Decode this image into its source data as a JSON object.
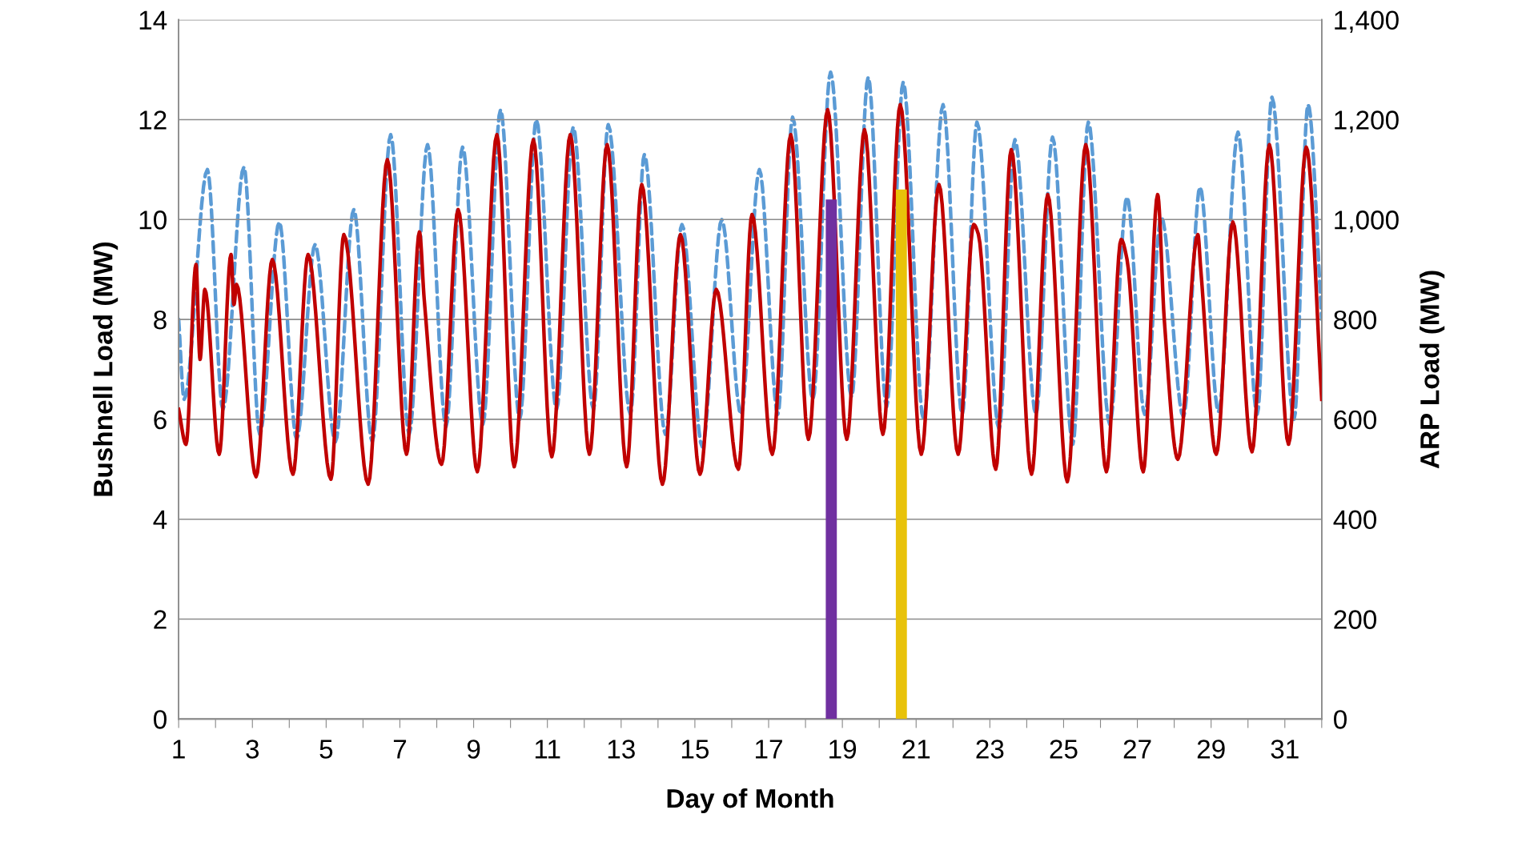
{
  "chart_data": {
    "type": "line",
    "xlabel": "Day of Month",
    "ylabel": "Bushnell Load (MW)",
    "y2label": "ARP Load (MW)",
    "xlim": [
      1,
      32
    ],
    "xticks": [
      1,
      {
        "value": 2,
        "label": null
      },
      3,
      {
        "value": 4,
        "label": null
      },
      5,
      {
        "value": 6,
        "label": null
      },
      7,
      {
        "value": 8,
        "label": null
      },
      9,
      {
        "value": 10,
        "label": null
      },
      11,
      {
        "value": 12,
        "label": null
      },
      13,
      {
        "value": 14,
        "label": null
      },
      15,
      {
        "value": 16,
        "label": null
      },
      17,
      {
        "value": 18,
        "label": null
      },
      19,
      {
        "value": 20,
        "label": null
      },
      21,
      {
        "value": 22,
        "label": null
      },
      23,
      {
        "value": 24,
        "label": null
      },
      25,
      {
        "value": 26,
        "label": null
      },
      27,
      {
        "value": 28,
        "label": null
      },
      29,
      {
        "value": 30,
        "label": null
      },
      31,
      {
        "value": 32,
        "label": null
      }
    ],
    "ylim": [
      0,
      14
    ],
    "yticks": [
      0,
      2,
      4,
      6,
      8,
      10,
      12,
      14
    ],
    "y2lim": [
      0,
      1400
    ],
    "y2ticks": [
      0,
      200,
      400,
      600,
      800,
      {
        "value": 1000,
        "label": "1,000"
      },
      {
        "value": 1200,
        "label": "1,200"
      },
      {
        "value": 1400,
        "label": "1,400"
      }
    ],
    "grid": "y",
    "legend": false,
    "series": [
      {
        "axis": "y2",
        "color": "#5b9bd5",
        "line_style": "dashed",
        "x": [
          1.0,
          1.15,
          1.78,
          2.2,
          2.77,
          3.2,
          3.73,
          4.2,
          4.7,
          5.25,
          5.75,
          6.25,
          6.75,
          7.25,
          7.75,
          8.25,
          8.7,
          9.25,
          9.73,
          10.25,
          10.7,
          11.25,
          11.7,
          12.25,
          12.65,
          13.25,
          13.63,
          14.2,
          14.65,
          15.2,
          15.73,
          16.25,
          16.75,
          17.25,
          17.65,
          18.2,
          18.68,
          19.25,
          19.7,
          20.2,
          20.65,
          21.2,
          21.73,
          22.25,
          22.65,
          23.25,
          23.68,
          24.25,
          24.7,
          25.25,
          25.67,
          26.25,
          26.72,
          27.2,
          27.65,
          28.25,
          28.7,
          29.2,
          29.73,
          30.25,
          30.65,
          31.25,
          31.63,
          32.0
        ],
        "values": [
          800,
          640,
          1100,
          620,
          1105,
          570,
          995,
          560,
          950,
          555,
          1020,
          555,
          1170,
          570,
          1150,
          585,
          1145,
          590,
          1220,
          600,
          1200,
          620,
          1185,
          620,
          1190,
          610,
          1130,
          570,
          990,
          545,
          1000,
          610,
          1100,
          610,
          1205,
          640,
          1295,
          645,
          1285,
          625,
          1275,
          600,
          1230,
          610,
          1195,
          580,
          1160,
          610,
          1165,
          550,
          1195,
          590,
          1045,
          610,
          1005,
          605,
          1065,
          615,
          1175,
          610,
          1245,
          600,
          1230,
          800
        ]
      },
      {
        "color": "#c00000",
        "line_style": "solid",
        "x": [
          1.0,
          1.2,
          1.47,
          1.58,
          1.71,
          2.1,
          2.42,
          2.5,
          2.57,
          3.1,
          3.54,
          4.1,
          4.51,
          5.13,
          5.48,
          6.14,
          6.66,
          7.18,
          7.53,
          7.66,
          8.13,
          8.58,
          9.1,
          9.63,
          10.1,
          10.62,
          11.12,
          11.62,
          12.14,
          12.62,
          13.15,
          13.56,
          14.12,
          14.61,
          15.14,
          15.58,
          16.18,
          16.55,
          17.1,
          17.6,
          18.08,
          18.6,
          19.12,
          19.6,
          20.1,
          20.57,
          21.14,
          21.62,
          22.14,
          22.56,
          22.69,
          23.16,
          23.58,
          24.13,
          24.57,
          25.1,
          25.6,
          26.16,
          26.56,
          26.72,
          27.16,
          27.55,
          27.73,
          28.1,
          28.64,
          28.72,
          29.14,
          29.59,
          30.11,
          30.58,
          31.1,
          31.58,
          32.0
        ],
        "values": [
          6.2,
          5.5,
          9.1,
          7.2,
          8.6,
          5.3,
          9.3,
          8.3,
          8.7,
          4.85,
          9.2,
          4.9,
          9.3,
          4.8,
          9.7,
          4.7,
          11.2,
          5.3,
          9.75,
          8.4,
          5.1,
          10.2,
          4.95,
          11.7,
          5.05,
          11.6,
          5.25,
          11.7,
          5.3,
          11.5,
          5.05,
          10.7,
          4.7,
          9.7,
          4.9,
          8.6,
          5.0,
          10.1,
          5.3,
          11.7,
          5.6,
          12.2,
          5.6,
          11.8,
          5.7,
          12.3,
          5.3,
          10.7,
          5.3,
          9.9,
          9.7,
          5.0,
          11.4,
          4.9,
          10.5,
          4.75,
          11.5,
          4.95,
          9.6,
          9.2,
          4.95,
          10.5,
          8.0,
          5.2,
          9.7,
          9.0,
          5.3,
          9.95,
          5.35,
          11.5,
          5.5,
          11.45,
          6.4
        ]
      },
      {
        "type": "bar",
        "x": [
          18.7,
          20.6
        ],
        "values": [
          10.4,
          10.6
        ],
        "colors": [
          "#7030a0",
          "#e8c20a"
        ]
      }
    ]
  }
}
